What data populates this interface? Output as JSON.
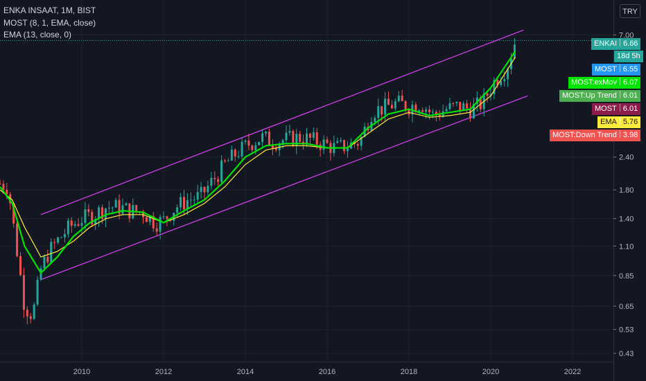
{
  "legend": {
    "symbol": "ENKA INSAAT, 1M, BIST",
    "most": "MOST (8, 1, EMA, close)",
    "ema": "EMA (13, close, 0)"
  },
  "currency_button": "TRY",
  "price_tags": [
    {
      "label": "ENKAI",
      "value": "6.66",
      "bg": "#26a69a",
      "fg": "#ffffff"
    },
    {
      "label": "",
      "value": "18d 5h",
      "bg": "#26a69a",
      "fg": "#ffffff"
    },
    {
      "label": "MOST",
      "value": "6.55",
      "bg": "#2196f3",
      "fg": "#ffffff"
    },
    {
      "label": "MOST:exMov",
      "value": "6.07",
      "bg": "#00e400",
      "fg": "#ffffff"
    },
    {
      "label": "MOST:Up Trend",
      "value": "6.01",
      "bg": "#4caf50",
      "fg": "#ffffff"
    },
    {
      "label": "MOST",
      "value": "6.01",
      "bg": "#8a1c4a",
      "fg": "#ffffff"
    },
    {
      "label": "EMA",
      "value": "5.76",
      "bg": "#ffeb3b",
      "fg": "#131722"
    },
    {
      "label": "MOST:Down Trend",
      "value": "3.98",
      "bg": "#ef5350",
      "fg": "#ffffff"
    }
  ],
  "chart_data": {
    "type": "line",
    "title": "ENKA INSAAT, 1M, BIST",
    "y_scale": "log",
    "y_ticks": [
      "7.00",
      "2.40",
      "1.80",
      "1.40",
      "1.10",
      "0.85",
      "0.65",
      "0.53",
      "0.43"
    ],
    "x_ticks": [
      "2010",
      "2012",
      "2014",
      "2016",
      "2018",
      "2020",
      "2022"
    ],
    "x_range": [
      2008.0,
      2023.0
    ],
    "y_range": [
      0.4,
      9.5
    ],
    "colors": {
      "up": "#26a69a",
      "down": "#ef5350",
      "most": "#00e400",
      "ema": "#ffeb3b",
      "channel": "#e040fb",
      "background": "#131722"
    },
    "series": [
      {
        "name": "ENKA INSAAT",
        "x": [
          2008.0,
          2008.2,
          2008.4,
          2008.6,
          2008.8,
          2009.0,
          2009.2,
          2009.4,
          2009.7,
          2010.0,
          2010.3,
          2010.6,
          2010.9,
          2011.2,
          2011.5,
          2011.8,
          2012.0,
          2012.3,
          2012.6,
          2012.9,
          2013.2,
          2013.5,
          2013.8,
          2014.1,
          2014.4,
          2014.7,
          2015.0,
          2015.3,
          2015.6,
          2015.9,
          2016.2,
          2016.5,
          2016.8,
          2017.1,
          2017.4,
          2017.7,
          2018.0,
          2018.3,
          2018.6,
          2018.9,
          2019.2,
          2019.5,
          2019.8,
          2020.1,
          2020.4,
          2020.6
        ],
        "values": [
          1.9,
          1.85,
          1.1,
          0.65,
          0.6,
          0.9,
          1.05,
          1.15,
          1.3,
          1.4,
          1.45,
          1.55,
          1.55,
          1.5,
          1.48,
          1.35,
          1.38,
          1.55,
          1.65,
          1.7,
          1.95,
          2.25,
          2.5,
          2.7,
          2.85,
          2.75,
          2.8,
          2.85,
          2.8,
          2.7,
          2.6,
          2.65,
          2.75,
          3.6,
          3.7,
          3.85,
          3.75,
          3.85,
          3.45,
          3.65,
          3.75,
          3.65,
          3.85,
          4.7,
          5.3,
          6.66
        ]
      },
      {
        "name": "MOST",
        "x": [
          2008.0,
          2008.3,
          2008.6,
          2009.0,
          2009.4,
          2009.8,
          2010.2,
          2010.6,
          2011.0,
          2011.5,
          2012.0,
          2012.5,
          2013.0,
          2013.5,
          2014.0,
          2014.5,
          2015.0,
          2015.5,
          2016.0,
          2016.5,
          2017.0,
          2017.5,
          2018.0,
          2018.5,
          2019.0,
          2019.5,
          2020.0,
          2020.6
        ],
        "values": [
          1.85,
          1.6,
          1.1,
          0.87,
          1.0,
          1.2,
          1.35,
          1.45,
          1.5,
          1.48,
          1.35,
          1.5,
          1.65,
          1.95,
          2.4,
          2.65,
          2.7,
          2.7,
          2.6,
          2.6,
          3.1,
          3.5,
          3.65,
          3.45,
          3.55,
          3.65,
          4.4,
          6.07
        ]
      },
      {
        "name": "EMA",
        "x": [
          2008.0,
          2008.3,
          2008.6,
          2009.0,
          2009.4,
          2009.8,
          2010.2,
          2010.6,
          2011.0,
          2011.5,
          2012.0,
          2012.5,
          2013.0,
          2013.5,
          2014.0,
          2014.5,
          2015.0,
          2015.5,
          2016.0,
          2016.5,
          2017.0,
          2017.5,
          2018.0,
          2018.5,
          2019.0,
          2019.5,
          2020.0,
          2020.6
        ],
        "values": [
          1.8,
          1.65,
          1.3,
          1.0,
          1.05,
          1.15,
          1.3,
          1.4,
          1.45,
          1.45,
          1.35,
          1.45,
          1.6,
          1.85,
          2.25,
          2.55,
          2.65,
          2.65,
          2.6,
          2.6,
          2.95,
          3.35,
          3.55,
          3.4,
          3.45,
          3.55,
          4.1,
          5.76
        ]
      }
    ],
    "channel": {
      "upper": {
        "x": [
          2009.0,
          2020.8
        ],
        "values": [
          1.45,
          7.3
        ]
      },
      "lower": {
        "x": [
          2009.0,
          2020.9
        ],
        "values": [
          0.82,
          4.1
        ]
      }
    }
  }
}
